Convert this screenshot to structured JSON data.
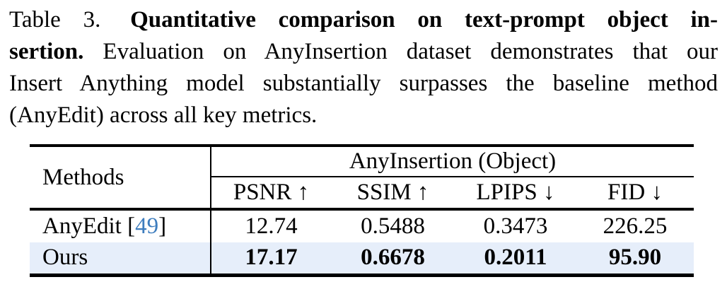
{
  "caption": {
    "label": "Table 3.",
    "title_bold_line1": "Quantitative comparison on text-prompt object in-",
    "title_bold_line2": "sertion.",
    "line2_rest": "Evaluation on AnyInsertion dataset demonstrates that our",
    "line3": "Insert Anything model substantially surpasses the baseline method",
    "line4": "(AnyEdit) across all key metrics."
  },
  "table": {
    "methods_header": "Methods",
    "group_header": "AnyInsertion (Object)",
    "metric_headers": [
      "PSNR ↑",
      "SSIM ↑",
      "LPIPS ↓",
      "FID ↓"
    ],
    "rows": [
      {
        "method": "AnyEdit",
        "cite_open": "[",
        "cite": "49",
        "cite_close": "]",
        "values": [
          "12.74",
          "0.5488",
          "0.3473",
          "226.25"
        ]
      },
      {
        "method": "Ours",
        "values": [
          "17.17",
          "0.6678",
          "0.2011",
          "95.90"
        ]
      }
    ],
    "colors": {
      "highlight_row": "#E6EEFA",
      "cite_blue": "#3E7DBE",
      "rule_black": "#000000"
    }
  },
  "chart_data": {
    "type": "table",
    "title": "Quantitative comparison on text-prompt object insertion (AnyInsertion (Object))",
    "columns": [
      "Methods",
      "PSNR",
      "SSIM",
      "LPIPS",
      "FID"
    ],
    "rows": [
      {
        "method": "AnyEdit [49]",
        "PSNR": 12.74,
        "SSIM": 0.5488,
        "LPIPS": 0.3473,
        "FID": 226.25
      },
      {
        "method": "Ours",
        "PSNR": 17.17,
        "SSIM": 0.6678,
        "LPIPS": 0.2011,
        "FID": 95.9
      }
    ],
    "metric_direction": {
      "PSNR": "higher-better",
      "SSIM": "higher-better",
      "LPIPS": "lower-better",
      "FID": "lower-better"
    },
    "best_row": "Ours"
  }
}
